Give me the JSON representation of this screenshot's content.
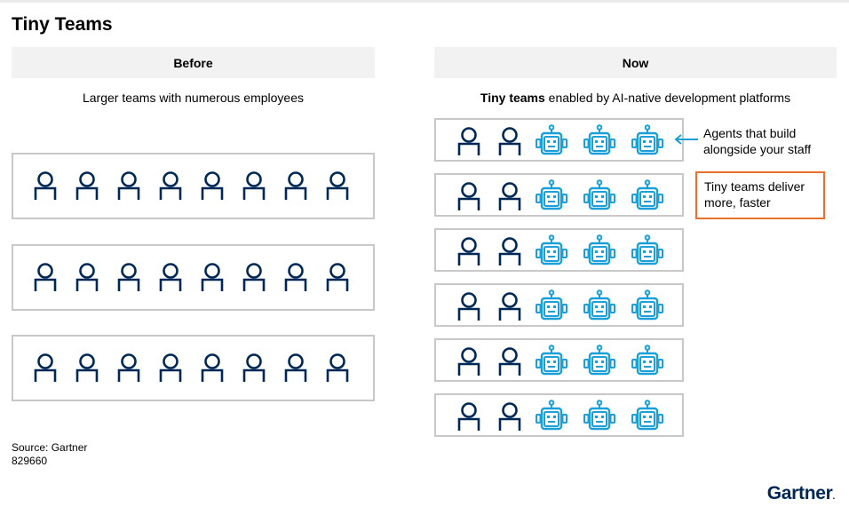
{
  "title": "Tiny Teams",
  "before": {
    "header": "Before",
    "subtitle": "Larger teams with numerous employees",
    "teams": [
      {
        "humans": 8,
        "agents": 0
      },
      {
        "humans": 8,
        "agents": 0
      },
      {
        "humans": 8,
        "agents": 0
      }
    ]
  },
  "now": {
    "header": "Now",
    "subtitle_bold": "Tiny teams",
    "subtitle_rest": " enabled by AI-native development platforms",
    "teams": [
      {
        "humans": 2,
        "agents": 3
      },
      {
        "humans": 2,
        "agents": 3
      },
      {
        "humans": 2,
        "agents": 3
      },
      {
        "humans": 2,
        "agents": 3
      },
      {
        "humans": 2,
        "agents": 3
      },
      {
        "humans": 2,
        "agents": 3
      }
    ],
    "callout_agents": "Agents that build alongside your staff",
    "callout_agents_line1": "Agents that build",
    "callout_agents_line2": "alongside your staff",
    "callout_faster_line1": "Tiny teams deliver",
    "callout_faster_line2": "more, faster"
  },
  "source_line1": "Source: Gartner",
  "source_line2": "829660",
  "logo": "Gartner",
  "logo_dot": ".",
  "colors": {
    "human": "#002856",
    "agent": "#1a9fd9",
    "box_border": "#c8c8c8",
    "header_bg": "#f2f2f2",
    "callout_border": "#e8702a"
  },
  "icons": {
    "human": "person-icon",
    "agent": "robot-icon"
  }
}
